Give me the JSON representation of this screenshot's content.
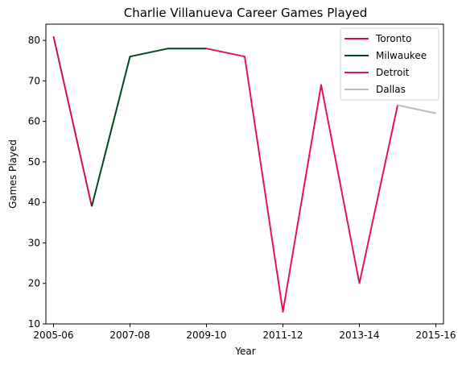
{
  "chart_data": {
    "type": "line",
    "title": "Charlie Villanueva Career Games Played",
    "xlabel": "Year",
    "ylabel": "Games Played",
    "xlim": [
      -0.2,
      10.2
    ],
    "ylim": [
      10,
      84
    ],
    "xticks": [
      {
        "x": 0,
        "label": "2005-06"
      },
      {
        "x": 2,
        "label": "2007-08"
      },
      {
        "x": 4,
        "label": "2009-10"
      },
      {
        "x": 6,
        "label": "2011-12"
      },
      {
        "x": 8,
        "label": "2013-14"
      },
      {
        "x": 10,
        "label": "2015-16"
      }
    ],
    "yticks": [
      10,
      20,
      30,
      40,
      50,
      60,
      70,
      80
    ],
    "grid": false,
    "legend_position": "top-right",
    "series": [
      {
        "name": "Toronto",
        "color": "#CE1141",
        "x": [
          0,
          1
        ],
        "y": [
          81,
          39
        ]
      },
      {
        "name": "Milwaukee",
        "color": "#00471B",
        "x": [
          1,
          2,
          3,
          4
        ],
        "y": [
          39,
          76,
          78,
          78
        ]
      },
      {
        "name": "Detroit",
        "color": "#E0174B",
        "x": [
          4,
          5,
          6,
          7,
          8,
          9
        ],
        "y": [
          78,
          76,
          13,
          69,
          20,
          64
        ]
      },
      {
        "name": "Dallas",
        "color": "#BBBBBB",
        "x": [
          9,
          10
        ],
        "y": [
          64,
          62
        ]
      }
    ]
  }
}
